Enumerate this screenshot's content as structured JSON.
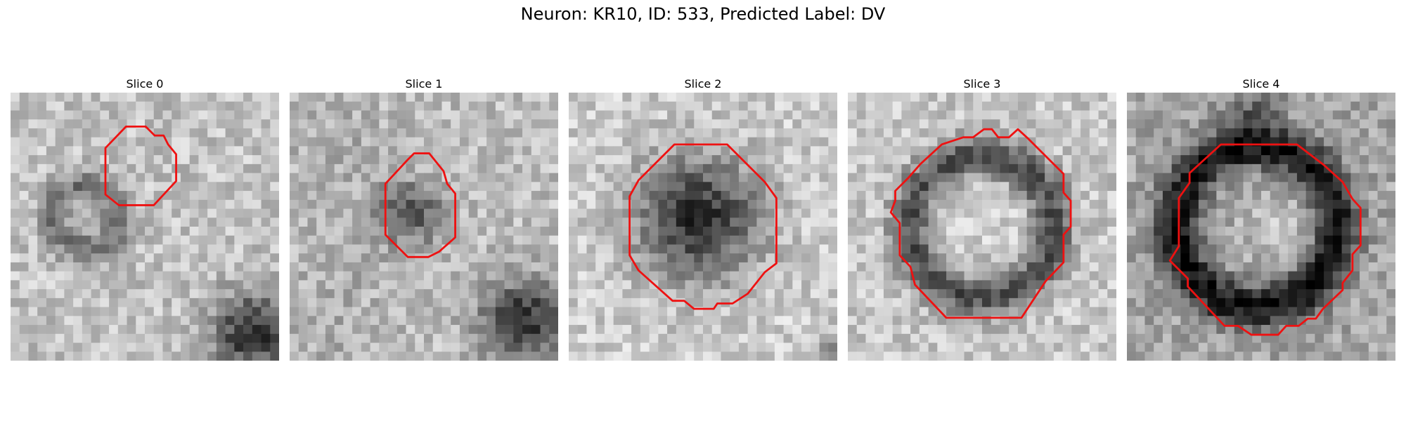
{
  "figure": {
    "title": "Neuron: KR10, ID: 533, Predicted Label: DV"
  },
  "slices": [
    {
      "title": "Slice 0",
      "contour_color": "#ee1111"
    },
    {
      "title": "Slice 1",
      "contour_color": "#ee1111"
    },
    {
      "title": "Slice 2",
      "contour_color": "#ee1111"
    },
    {
      "title": "Slice 3",
      "contour_color": "#ee1111"
    },
    {
      "title": "Slice 4",
      "contour_color": "#ee1111"
    }
  ]
}
